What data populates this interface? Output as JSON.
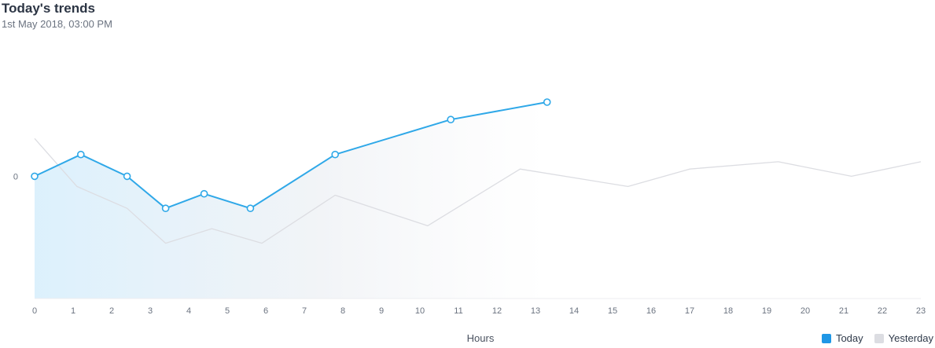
{
  "header": {
    "title": "Today's trends",
    "subtitle": "1st May 2018, 03:00 PM"
  },
  "chart_data": {
    "type": "line",
    "title": "Today's trends",
    "subtitle": "1st May 2018, 03:00 PM",
    "xlabel": "Hours",
    "ylabel": "",
    "x_ticks": [
      "0",
      "1",
      "2",
      "3",
      "4",
      "5",
      "6",
      "7",
      "8",
      "9",
      "10",
      "11",
      "12",
      "13",
      "14",
      "15",
      "16",
      "17",
      "18",
      "19",
      "20",
      "21",
      "22",
      "23"
    ],
    "xlim": [
      0,
      23
    ],
    "y_ticks": [
      "0"
    ],
    "ylim": [
      -8.4,
      5.1
    ],
    "grid": false,
    "legend_position": "bottom-right",
    "series": [
      {
        "name": "Today",
        "color": "#2fa8e8",
        "markers": true,
        "filled": true,
        "x": [
          0,
          1.2,
          2.4,
          3.4,
          4.4,
          5.6,
          7.8,
          10.8,
          13.3
        ],
        "y": [
          0,
          1.5,
          0,
          -2.2,
          -1.2,
          -2.2,
          1.5,
          3.9,
          5.1
        ]
      },
      {
        "name": "Yesterday",
        "color": "#dcdde2",
        "markers": false,
        "filled": false,
        "x": [
          0,
          1.1,
          2.4,
          3.4,
          4.6,
          5.9,
          7.8,
          10.2,
          12.6,
          15.4,
          17.0,
          19.3,
          21.2,
          23.0
        ],
        "y": [
          2.6,
          -0.7,
          -2.2,
          -4.6,
          -3.6,
          -4.6,
          -1.3,
          -3.4,
          0.5,
          -0.7,
          0.5,
          1.0,
          0,
          1.0
        ]
      }
    ]
  }
}
